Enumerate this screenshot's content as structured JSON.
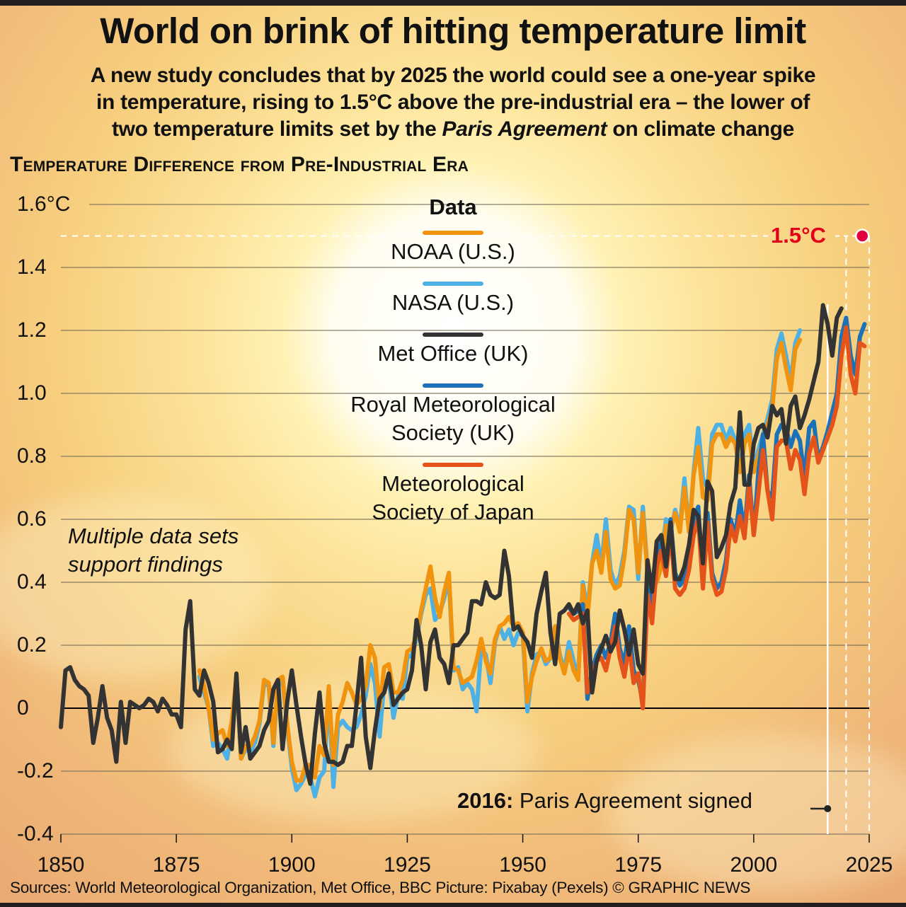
{
  "header": {
    "title": "World on brink of hitting temperature limit",
    "subtitle_line1": "A new study concludes that by 2025 the world could see a one-year spike",
    "subtitle_line2": "in temperature, rising to 1.5°C above the pre-industrial era – the lower of",
    "subtitle_line3_pre": "two temperature limits set by the ",
    "subtitle_line3_italic": "Paris Agreement",
    "subtitle_line3_post": " on climate change"
  },
  "chart_data": {
    "type": "line",
    "title": "Temperature Difference from Pre-Industrial Era",
    "xlabel": "",
    "ylabel": "°C",
    "xlim": [
      1850,
      2025
    ],
    "ylim": [
      -0.4,
      1.6
    ],
    "grid": true,
    "legend_placement": "top-center",
    "legend_title": "Data",
    "x_ticks": [
      "1850",
      "1875",
      "1900",
      "1925",
      "1950",
      "1975",
      "2000",
      "2025"
    ],
    "y_ticks": [
      "1.6°C",
      "1.4",
      "1.2",
      "1.0",
      "0.8",
      "0.6",
      "0.4",
      "0.2",
      "0",
      "-0.2",
      "-0.4"
    ],
    "y_tick_values": [
      1.6,
      1.4,
      1.2,
      1.0,
      0.8,
      0.6,
      0.4,
      0.2,
      0,
      -0.2,
      -0.4
    ],
    "x_tick_values": [
      1850,
      1875,
      1900,
      1925,
      1950,
      1975,
      2000,
      2025
    ],
    "series": [
      {
        "name": "NOAA (U.S.)",
        "color": "#f0940f",
        "start_year": 1880,
        "values": [
          0.12,
          0.07,
          0.0,
          -0.1,
          -0.08,
          -0.07,
          -0.12,
          -0.04,
          0.1,
          -0.16,
          -0.12,
          -0.12,
          -0.09,
          -0.04,
          0.09,
          0.08,
          -0.11,
          0.09,
          0.1,
          -0.05,
          -0.17,
          -0.23,
          -0.23,
          -0.18,
          -0.18,
          -0.22,
          -0.12,
          -0.15,
          0.07,
          -0.18,
          -0.02,
          0.02,
          0.08,
          0.05,
          0.01,
          0.03,
          0.07,
          0.2,
          0.16,
          0.0,
          0.13,
          0.14,
          0.05,
          0.05,
          0.09,
          0.18,
          0.19,
          0.23,
          0.31,
          0.38,
          0.45,
          0.35,
          0.29,
          0.37,
          0.43,
          0.13,
          0.12,
          0.08,
          0.09,
          0.1,
          0.15,
          0.22,
          0.15,
          0.11,
          0.22,
          0.26,
          0.27,
          0.29,
          0.26,
          0.27,
          0.24,
          0.02,
          0.1,
          0.15,
          0.19,
          0.15,
          0.16,
          0.26,
          0.16,
          0.11,
          0.18,
          0.12,
          0.09,
          0.39,
          0.28,
          0.46,
          0.5,
          0.43,
          0.56,
          0.41,
          0.38,
          0.39,
          0.48,
          0.63,
          0.6,
          0.43,
          0.62,
          0.43,
          0.4,
          0.4,
          0.45,
          0.58,
          0.57,
          0.62,
          0.56,
          0.7,
          0.56,
          0.74,
          0.83,
          0.67,
          0.66,
          0.84,
          0.87,
          0.87,
          0.83,
          0.86,
          0.84,
          0.75,
          0.84,
          0.87,
          0.75,
          0.8,
          0.85,
          0.9,
          0.95,
          1.11,
          1.16,
          1.08,
          1.01,
          1.14,
          1.17
        ]
      },
      {
        "name": "NASA (U.S.)",
        "color": "#4db1e6",
        "start_year": 1880,
        "values": [
          0.1,
          0.05,
          0.0,
          -0.12,
          -0.11,
          -0.13,
          -0.16,
          -0.06,
          0.08,
          -0.16,
          -0.13,
          -0.14,
          -0.11,
          -0.05,
          0.08,
          0.07,
          -0.12,
          0.07,
          0.09,
          -0.06,
          -0.19,
          -0.26,
          -0.24,
          -0.21,
          -0.22,
          -0.28,
          -0.22,
          -0.2,
          0.05,
          -0.25,
          -0.06,
          -0.04,
          -0.06,
          -0.07,
          -0.06,
          -0.02,
          0.04,
          0.14,
          0.08,
          -0.09,
          0.08,
          0.09,
          -0.03,
          0.04,
          0.03,
          0.16,
          0.17,
          0.22,
          0.3,
          0.36,
          0.38,
          0.28,
          0.3,
          0.35,
          0.41,
          0.12,
          0.13,
          0.06,
          0.08,
          0.06,
          -0.01,
          0.19,
          0.17,
          0.08,
          0.21,
          0.26,
          0.22,
          0.25,
          0.2,
          0.24,
          0.23,
          -0.01,
          0.11,
          0.17,
          0.18,
          0.14,
          0.16,
          0.26,
          0.17,
          0.12,
          0.21,
          0.15,
          0.1,
          0.4,
          0.31,
          0.46,
          0.55,
          0.45,
          0.6,
          0.44,
          0.39,
          0.42,
          0.5,
          0.64,
          0.63,
          0.41,
          0.64,
          0.44,
          0.38,
          0.41,
          0.48,
          0.6,
          0.56,
          0.63,
          0.57,
          0.73,
          0.56,
          0.75,
          0.89,
          0.73,
          0.7,
          0.87,
          0.9,
          0.9,
          0.85,
          0.89,
          0.85,
          0.75,
          0.87,
          0.9,
          0.77,
          0.82,
          0.87,
          0.92,
          0.98,
          1.14,
          1.19,
          1.12,
          1.04,
          1.16,
          1.2
        ]
      },
      {
        "name": "Met Office (UK)",
        "color": "#333333",
        "start_year": 1850,
        "values": [
          -0.06,
          0.12,
          0.13,
          0.09,
          0.07,
          0.06,
          0.04,
          -0.11,
          -0.03,
          0.07,
          -0.03,
          -0.07,
          -0.17,
          0.02,
          -0.11,
          0.02,
          0.01,
          -0.0,
          0.01,
          0.03,
          0.02,
          -0.01,
          0.03,
          0.01,
          -0.02,
          -0.02,
          -0.06,
          0.25,
          0.34,
          0.06,
          0.04,
          0.12,
          0.08,
          0.02,
          -0.14,
          -0.13,
          -0.1,
          -0.13,
          0.11,
          -0.14,
          -0.06,
          -0.16,
          -0.14,
          -0.12,
          -0.07,
          -0.04,
          0.06,
          0.09,
          -0.13,
          0.02,
          0.12,
          0.01,
          -0.09,
          -0.18,
          -0.24,
          -0.08,
          0.05,
          -0.11,
          -0.17,
          -0.17,
          -0.18,
          -0.17,
          -0.12,
          -0.12,
          0.01,
          0.16,
          -0.09,
          -0.19,
          -0.07,
          0.03,
          0.05,
          0.11,
          0.01,
          0.03,
          0.05,
          0.06,
          0.12,
          0.28,
          0.2,
          0.06,
          0.21,
          0.25,
          0.16,
          0.14,
          0.08,
          0.2,
          0.2,
          0.22,
          0.24,
          0.34,
          0.34,
          0.33,
          0.4,
          0.36,
          0.35,
          0.36,
          0.5,
          0.42,
          0.25,
          0.26,
          0.23,
          0.21,
          0.16,
          0.3,
          0.37,
          0.43,
          0.24,
          0.14,
          0.3,
          0.31,
          0.33,
          0.3,
          0.33,
          0.27,
          0.31,
          0.05,
          0.15,
          0.19,
          0.23,
          0.18,
          0.21,
          0.31,
          0.25,
          0.17,
          0.25,
          0.14,
          0.11,
          0.47,
          0.37,
          0.53,
          0.55,
          0.45,
          0.59,
          0.41,
          0.41,
          0.45,
          0.52,
          0.63,
          0.61,
          0.46,
          0.72,
          0.69,
          0.48,
          0.51,
          0.55,
          0.65,
          0.7,
          0.94,
          0.71,
          0.71,
          0.84,
          0.89,
          0.9,
          0.86,
          0.96,
          0.93,
          0.95,
          0.84,
          0.96,
          0.99,
          0.89,
          0.93,
          0.98,
          1.04,
          1.1,
          1.28,
          1.22,
          1.12,
          1.24,
          1.27
        ]
      },
      {
        "name": "Royal Meteorological Society (UK)",
        "color": "#1b72b8",
        "start_year": 1960,
        "values": [
          0.32,
          0.3,
          0.31,
          0.33,
          0.03,
          0.12,
          0.17,
          0.2,
          0.16,
          0.21,
          0.3,
          0.19,
          0.14,
          0.26,
          0.12,
          0.09,
          0.02,
          0.4,
          0.31,
          0.47,
          0.53,
          0.45,
          0.6,
          0.43,
          0.39,
          0.41,
          0.49,
          0.6,
          0.64,
          0.41,
          0.62,
          0.43,
          0.38,
          0.4,
          0.47,
          0.6,
          0.55,
          0.66,
          0.56,
          0.74,
          0.55,
          0.75,
          0.87,
          0.69,
          0.67,
          0.87,
          0.9,
          0.89,
          0.83,
          0.88,
          0.85,
          0.73,
          0.89,
          0.91,
          0.79,
          0.83,
          0.88,
          0.94,
          1.0,
          1.18,
          1.24,
          1.12,
          1.06,
          1.18,
          1.22
        ]
      },
      {
        "name": "Meteorological Society of Japan",
        "color": "#e4531a",
        "start_year": 1960,
        "values": [
          0.3,
          0.28,
          0.29,
          0.3,
          0.05,
          0.1,
          0.15,
          0.16,
          0.12,
          0.19,
          0.26,
          0.16,
          0.1,
          0.2,
          0.08,
          0.11,
          0.0,
          0.36,
          0.27,
          0.45,
          0.5,
          0.42,
          0.56,
          0.38,
          0.36,
          0.38,
          0.44,
          0.55,
          0.6,
          0.38,
          0.59,
          0.41,
          0.36,
          0.37,
          0.44,
          0.58,
          0.53,
          0.61,
          0.54,
          0.71,
          0.55,
          0.68,
          0.82,
          0.69,
          0.6,
          0.83,
          0.85,
          0.85,
          0.76,
          0.82,
          0.79,
          0.68,
          0.81,
          0.86,
          0.78,
          0.82,
          0.86,
          0.9,
          0.96,
          1.12,
          1.21,
          1.06,
          1.0,
          1.16,
          1.15
        ]
      }
    ],
    "annotations": [
      {
        "text": "1.5°C",
        "x": 2024,
        "y": 1.5,
        "color": "#e2001a"
      },
      {
        "text_bold": "2016:",
        "text": " Paris Agreement signed",
        "x": 2016
      },
      {
        "text": "Multiple data sets support findings"
      }
    ],
    "reference_lines": [
      {
        "type": "horizontal-dashed",
        "y": 1.5
      },
      {
        "type": "vertical-solid",
        "x": 2016
      },
      {
        "type": "vertical-dashed",
        "x": 2020
      },
      {
        "type": "vertical-dashed",
        "x": 2025
      }
    ]
  },
  "chart": {
    "subtitle": "Temperature Difference from Pre-Industrial Era",
    "legend_title": "Data",
    "legend": [
      "NOAA (U.S.)",
      "NASA (U.S.)",
      "Met Office (UK)",
      "Royal Meteorological Society (UK)",
      "Meteorological Society of Japan"
    ],
    "legend_line1": [
      "NOAA (U.S.)",
      "NASA (U.S.)",
      "Met Office (UK)",
      "Royal Meteorological",
      "Meteorological"
    ],
    "legend_line2": [
      "",
      "",
      "",
      "Society (UK)",
      "Society of Japan"
    ],
    "note_line1": "Multiple data sets",
    "note_line2": "support findings",
    "limit_label": "1.5°C",
    "paris_year": "2016:",
    "paris_text": " Paris Agreement signed"
  },
  "footer": {
    "sources": "Sources: World Meteorological Organization, Met Office, BBC  Picture: Pixabay (Pexels)  © GRAPHIC NEWS"
  }
}
